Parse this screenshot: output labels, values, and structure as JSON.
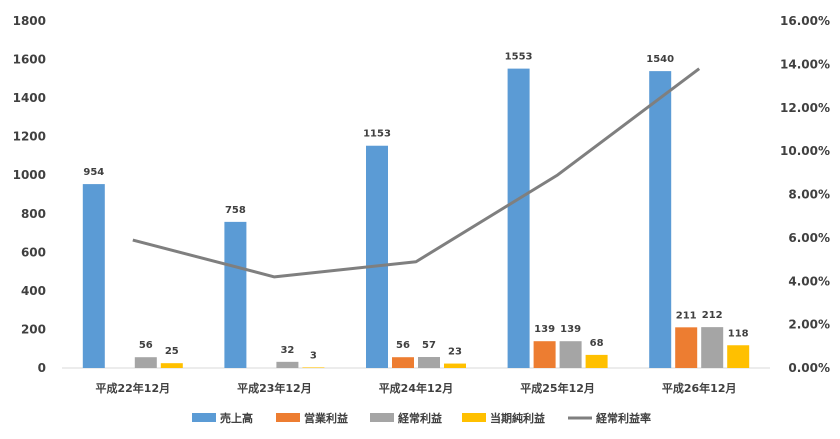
{
  "chart_data": {
    "type": "bar",
    "categories": [
      "平成22年12月",
      "平成23年12月",
      "平成24年12月",
      "平成25年12月",
      "平成26年12月"
    ],
    "series": [
      {
        "name": "売上高",
        "color": "#5b9bd5",
        "values": [
          954,
          758,
          1153,
          1553,
          1540
        ],
        "labels": [
          "954",
          "758",
          "1153",
          "1553",
          "1540"
        ]
      },
      {
        "name": "営業利益",
        "color": "#ed7d31",
        "values": [
          null,
          null,
          56,
          139,
          211
        ],
        "labels": [
          null,
          null,
          "56",
          "139",
          "211"
        ]
      },
      {
        "name": "経常利益",
        "color": "#a5a5a5",
        "values": [
          56,
          32,
          57,
          139,
          212
        ],
        "labels": [
          "56",
          "32",
          "57",
          "139",
          "212"
        ]
      },
      {
        "name": "当期純利益",
        "color": "#ffc000",
        "values": [
          25,
          3,
          23,
          68,
          118
        ],
        "labels": [
          "25",
          "3",
          "23",
          "68",
          "118"
        ]
      },
      {
        "name": "経常利益率",
        "type": "line",
        "axis": "right",
        "color": "#7f7f7f",
        "values": [
          5.9,
          4.2,
          4.9,
          8.9,
          13.8
        ]
      }
    ],
    "ylim": [
      0,
      1800
    ],
    "yticks": [
      "0",
      "200",
      "400",
      "600",
      "800",
      "1000",
      "1200",
      "1400",
      "1600",
      "1800"
    ],
    "y2lim": [
      0,
      16
    ],
    "y2ticks": [
      "0.00%",
      "2.00%",
      "4.00%",
      "6.00%",
      "8.00%",
      "10.00%",
      "12.00%",
      "14.00%",
      "16.00%"
    ],
    "grid": false,
    "legend": "bottom"
  }
}
